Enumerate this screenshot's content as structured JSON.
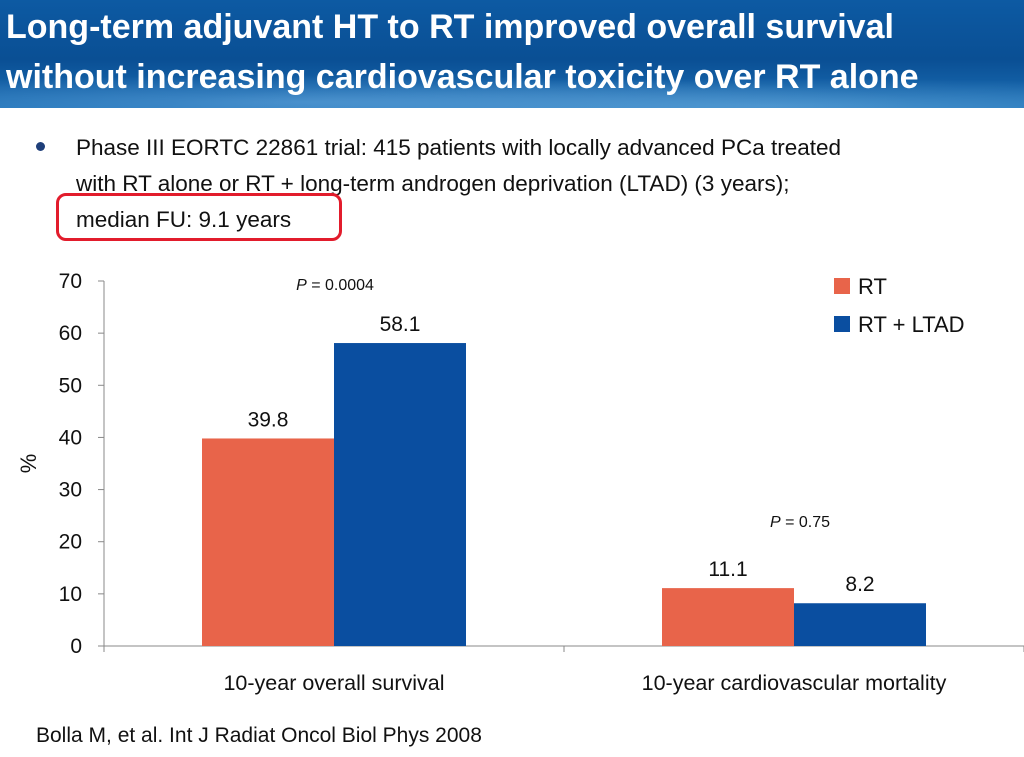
{
  "title": {
    "line1": "Long-term adjuvant HT to RT improved overall survival",
    "line2": "without increasing cardiovascular toxicity over RT alone"
  },
  "bullet": {
    "line1": "Phase III EORTC 22861 trial: 415 patients with locally advanced PCa treated",
    "line2": "with RT alone or RT + long-term androgen deprivation (LTAD) (3 years);",
    "line3": "median FU: 9.1 years"
  },
  "colors": {
    "rt": "#e8644a",
    "rt_ltad": "#0a4ea0",
    "highlight": "#e21c2c"
  },
  "chart_data": {
    "type": "bar",
    "categories": [
      "10-year overall survival",
      "10-year cardiovascular mortality"
    ],
    "series": [
      {
        "name": "RT",
        "values": [
          39.8,
          11.1
        ],
        "color": "#e8644a"
      },
      {
        "name": "RT + LTAD",
        "values": [
          58.1,
          8.2
        ],
        "color": "#0a4ea0"
      }
    ],
    "ylabel": "%",
    "ylim": [
      0,
      70
    ],
    "yticks": [
      0,
      10,
      20,
      30,
      40,
      50,
      60,
      70
    ],
    "grid": false,
    "legend": "top-right",
    "annotations": [
      {
        "p_label": "P",
        "text": " = 0.0004",
        "category": "10-year overall survival"
      },
      {
        "p_label": "P",
        "text": " = 0.75",
        "category": "10-year cardiovascular mortality"
      }
    ]
  },
  "citation": "Bolla M, et al. Int J Radiat Oncol Biol Phys 2008"
}
